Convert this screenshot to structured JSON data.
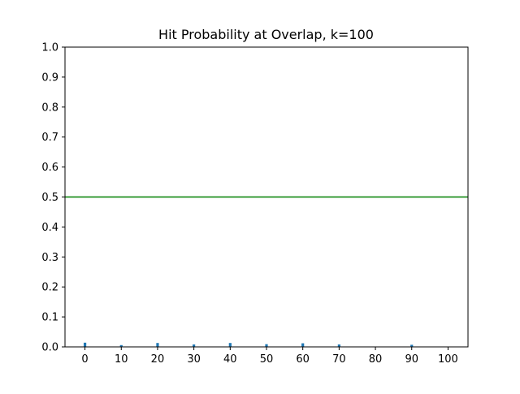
{
  "chart_data": {
    "type": "bar",
    "title": "Hit Probability at Overlap, k=100",
    "xlabel": "",
    "ylabel": "",
    "x": [
      0,
      10,
      20,
      30,
      40,
      50,
      60,
      70,
      80,
      90,
      100
    ],
    "values": [
      0.014,
      0.006,
      0.013,
      0.008,
      0.013,
      0.009,
      0.012,
      0.008,
      0.0,
      0.007,
      0.0
    ],
    "xlim": [
      -5.5,
      105.5
    ],
    "ylim": [
      0.0,
      1.0
    ],
    "xticks": [
      "0",
      "10",
      "20",
      "30",
      "40",
      "50",
      "60",
      "70",
      "80",
      "90",
      "100"
    ],
    "yticks": [
      "0.0",
      "0.1",
      "0.2",
      "0.3",
      "0.4",
      "0.5",
      "0.6",
      "0.7",
      "0.8",
      "0.9",
      "1.0"
    ],
    "reference_line": {
      "y": 0.5,
      "color": "#008000"
    },
    "bar_color": "#1f77b4",
    "grid": false,
    "legend": "none"
  }
}
